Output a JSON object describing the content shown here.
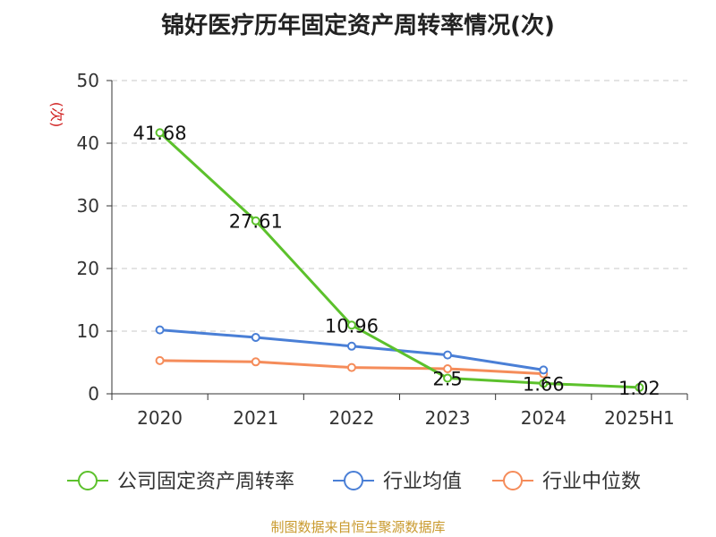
{
  "chart_data": {
    "type": "line",
    "title": "锦好医疗历年固定资产周转率情况(次)",
    "ylabel": "(次)",
    "ylim": [
      0,
      50
    ],
    "yticks": [
      0,
      10,
      20,
      30,
      40,
      50
    ],
    "categories": [
      "2020",
      "2021",
      "2022",
      "2023",
      "2024",
      "2025H1"
    ],
    "grid": true,
    "legend_position": "bottom",
    "series": [
      {
        "name": "公司固定资产周转率",
        "color": "#5cc12c",
        "values": [
          41.68,
          27.61,
          10.96,
          2.5,
          1.66,
          1.02
        ],
        "labels": [
          "41.68",
          "27.61",
          "10.96",
          "2.5",
          "1.66",
          "1.02"
        ]
      },
      {
        "name": "行业均值",
        "color": "#4a7fd6",
        "values": [
          10.2,
          9.0,
          7.6,
          6.2,
          3.8,
          null
        ]
      },
      {
        "name": "行业中位数",
        "color": "#f58c5a",
        "values": [
          5.3,
          5.1,
          4.2,
          4.0,
          3.2,
          null
        ]
      }
    ]
  },
  "source": "制图数据来自恒生聚源数据库"
}
